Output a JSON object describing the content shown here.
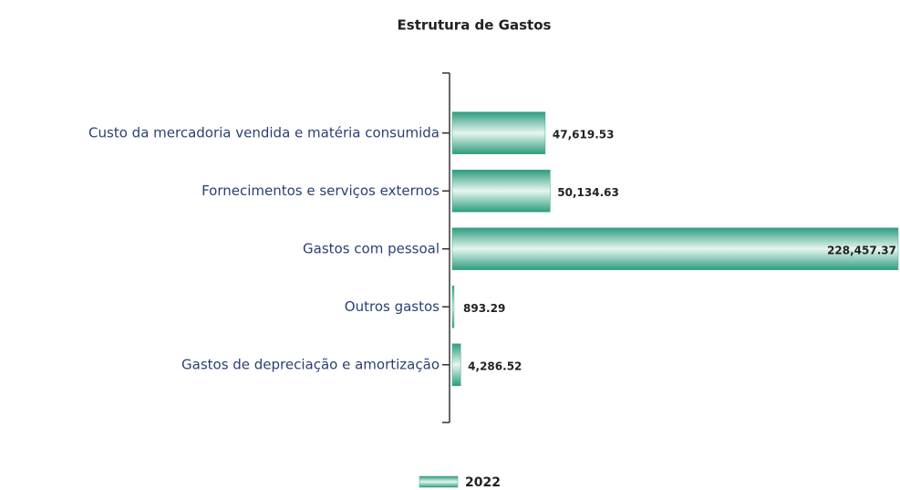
{
  "chart_data": {
    "type": "bar",
    "orientation": "horizontal",
    "title": "Estrutura de Gastos",
    "categories": [
      "Custo da mercadoria vendida e matéria consumida",
      "Fornecimentos e serviços externos",
      "Gastos com pessoal",
      "Outros gastos",
      "Gastos de depreciação e amortização"
    ],
    "series": [
      {
        "name": "2022",
        "color": "#3aa88a",
        "values": [
          47619.53,
          50134.63,
          228457.37,
          893.29,
          4286.52
        ],
        "value_labels": [
          "47,619.53",
          "50,134.63",
          "228,457.37",
          "893.29",
          "4,286.52"
        ]
      }
    ]
  }
}
